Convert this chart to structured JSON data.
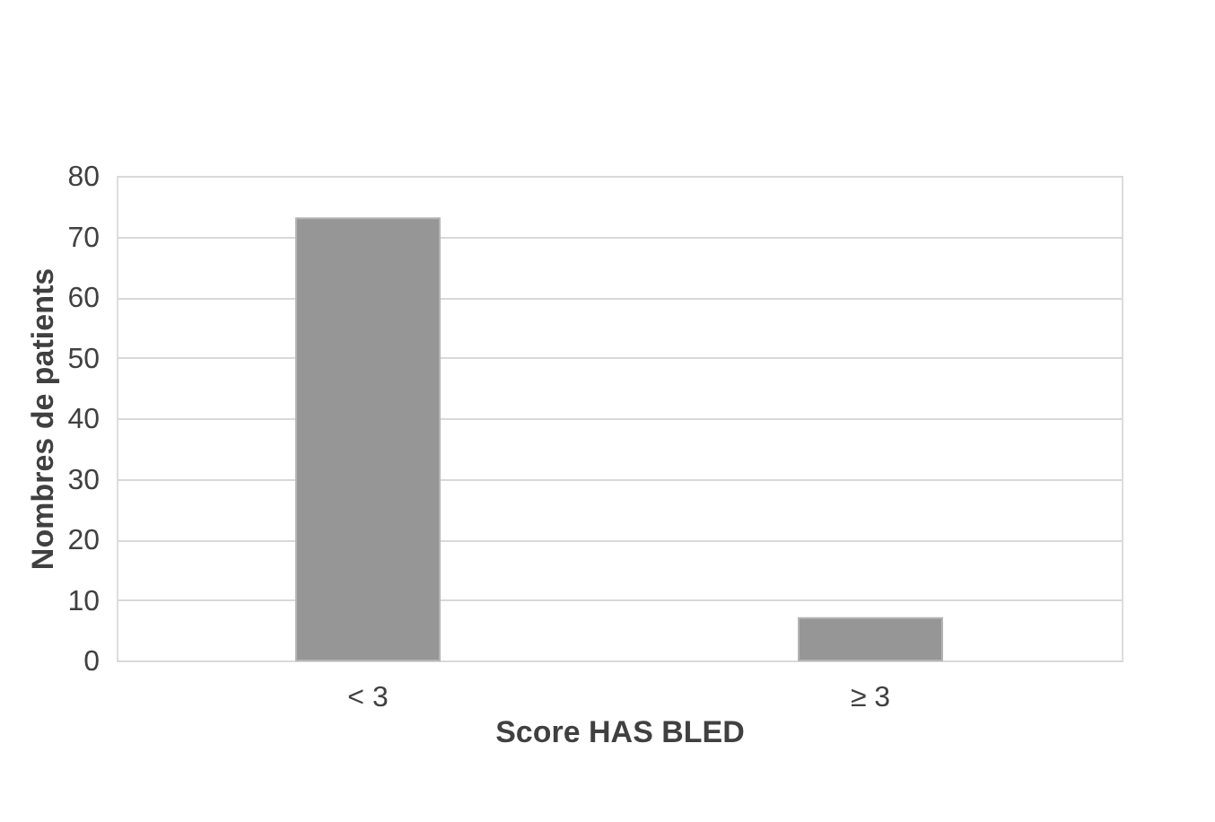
{
  "chart_data": {
    "type": "bar",
    "xlabel": "Score HAS BLED",
    "ylabel": "Nombres de patients",
    "categories": [
      "< 3",
      "≥ 3"
    ],
    "values": [
      73,
      7
    ],
    "color": "#969696",
    "ylim": [
      0,
      80
    ],
    "yticks": [
      0,
      10,
      20,
      30,
      40,
      50,
      60,
      70,
      80
    ],
    "grid": "y"
  }
}
